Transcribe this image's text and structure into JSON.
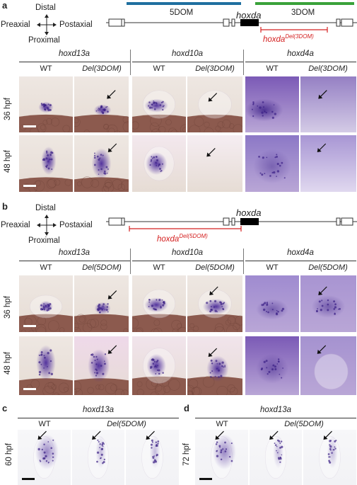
{
  "panel_a": {
    "label": "a",
    "axis": {
      "distal": "Distal",
      "proximal": "Proximal",
      "preaxial": "Preaxial",
      "postaxial": "Postaxial"
    },
    "map": {
      "dom5": "5DOM",
      "dom3": "3DOM",
      "hoxda": "hoxda",
      "del_base": "hoxda",
      "del_sup": "Del(3DOM)"
    },
    "genes": [
      "hoxd13a",
      "hoxd10a",
      "hoxd4a"
    ],
    "genotypes": [
      "WT",
      "Del(3DOM)"
    ],
    "rows": [
      "36 hpf",
      "48 hpf"
    ]
  },
  "panel_b": {
    "label": "b",
    "axis": {
      "distal": "Distal",
      "proximal": "Proximal",
      "preaxial": "Preaxial",
      "postaxial": "Postaxial"
    },
    "map": {
      "hoxda": "hoxda",
      "del_base": "hoxda",
      "del_sup": "Del(5DOM)"
    },
    "genes": [
      "hoxd13a",
      "hoxd10a",
      "hoxd4a"
    ],
    "genotypes": [
      "WT",
      "Del(5DOM)"
    ],
    "rows": [
      "36 hpf",
      "48 hpf"
    ]
  },
  "panel_c": {
    "label": "c",
    "gene": "hoxd13a",
    "wt": "WT",
    "del": "Del(5DOM)",
    "row": "60 hpf"
  },
  "panel_d": {
    "label": "d",
    "gene": "hoxd13a",
    "wt": "WT",
    "del": "Del(5DOM)",
    "row": "72 hpf"
  },
  "colors": {
    "dom5_bar": "#1f6fa0",
    "dom3_bar": "#3aa23a",
    "deletion": "#d42020",
    "stain": "#4b2a9a"
  }
}
